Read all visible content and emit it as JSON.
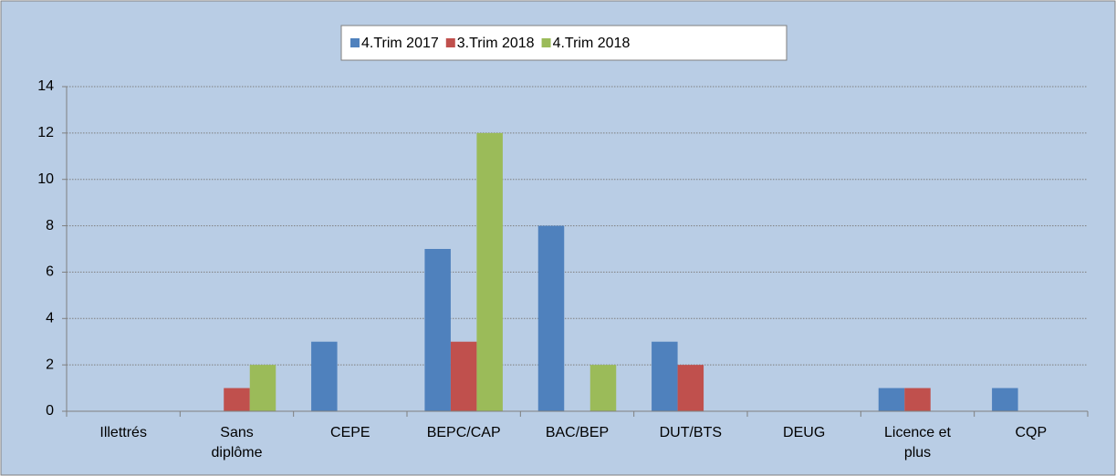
{
  "chart_data": {
    "type": "bar",
    "categories": [
      "Illettrés",
      "Sans diplôme",
      "CEPE",
      "BEPC/CAP",
      "BAC/BEP",
      "DUT/BTS",
      "DEUG",
      "Licence et plus",
      "CQP"
    ],
    "series": [
      {
        "name": "4.Trim 2017",
        "color": "#4f81bd",
        "values": [
          0,
          0,
          3,
          7,
          8,
          3,
          0,
          1,
          1
        ]
      },
      {
        "name": "3.Trim 2018",
        "color": "#c0504d",
        "values": [
          0,
          1,
          0,
          3,
          0,
          2,
          0,
          1,
          0
        ]
      },
      {
        "name": "4.Trim 2018",
        "color": "#9bbb59",
        "values": [
          0,
          2,
          0,
          12,
          2,
          0,
          0,
          0,
          0
        ]
      }
    ],
    "ylim": [
      0,
      14
    ],
    "yticks": [
      0,
      2,
      4,
      6,
      8,
      10,
      12,
      14
    ],
    "grid": true,
    "legend": "top"
  }
}
